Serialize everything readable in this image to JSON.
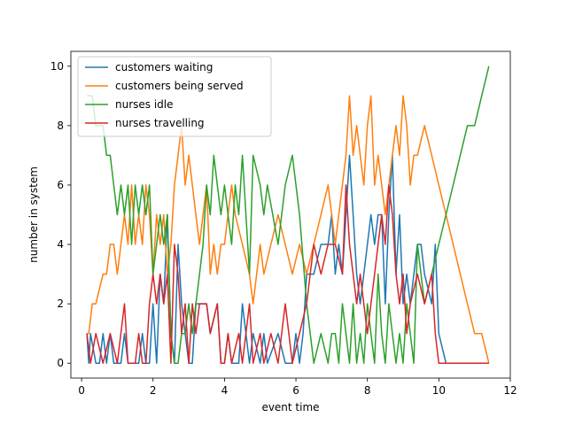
{
  "chart_data": {
    "type": "line",
    "title": "",
    "xlabel": "event time",
    "ylabel": "number in system",
    "xlim": [
      -0.3,
      12.0
    ],
    "ylim": [
      -0.5,
      10.5
    ],
    "xticks": [
      0,
      2,
      4,
      6,
      8,
      10,
      12
    ],
    "yticks": [
      0,
      2,
      4,
      6,
      8,
      10
    ],
    "legend_position": "top-left",
    "series": [
      {
        "name": "customers waiting",
        "color": "#1f77b4",
        "x": [
          0.15,
          0.2,
          0.25,
          0.4,
          0.5,
          0.6,
          0.7,
          0.8,
          0.9,
          1.0,
          1.1,
          1.2,
          1.3,
          1.5,
          1.6,
          1.7,
          1.8,
          1.9,
          2.0,
          2.1,
          2.2,
          2.3,
          2.4,
          2.5,
          2.6,
          2.7,
          2.8,
          2.9,
          3.0,
          3.1,
          3.2,
          3.3,
          3.5,
          3.6,
          3.8,
          3.9,
          4.0,
          4.1,
          4.2,
          4.4,
          4.5,
          4.7,
          4.8,
          5.0,
          5.1,
          5.2,
          5.5,
          5.7,
          5.9,
          6.0,
          6.1,
          6.2,
          6.3,
          6.5,
          6.7,
          6.9,
          7.0,
          7.1,
          7.2,
          7.3,
          7.4,
          7.5,
          7.6,
          7.7,
          7.8,
          8.0,
          8.1,
          8.2,
          8.3,
          8.4,
          8.5,
          8.6,
          8.7,
          8.8,
          8.9,
          9.0,
          9.1,
          9.2,
          9.4,
          9.5,
          9.6,
          9.8,
          9.9,
          10.0,
          10.2,
          10.4,
          11.0,
          11.4
        ],
        "y": [
          1,
          0,
          1,
          0,
          0,
          1,
          0,
          1,
          0,
          0,
          0,
          1,
          0,
          0,
          0,
          1,
          0,
          0,
          2,
          0,
          3,
          2,
          5,
          1,
          0,
          4,
          2,
          1,
          0,
          0,
          2,
          2,
          2,
          1,
          2,
          0,
          0,
          1,
          0,
          0,
          2,
          0,
          1,
          0,
          1,
          0,
          1,
          0,
          0,
          1,
          0,
          1,
          3,
          3,
          4,
          4,
          5,
          3,
          4,
          3,
          5,
          7,
          5,
          3,
          2,
          4,
          5,
          4,
          5,
          5,
          2,
          5,
          7,
          3,
          5,
          2,
          3,
          2,
          4,
          4,
          3,
          2,
          4,
          1,
          0,
          0,
          0,
          0
        ]
      },
      {
        "name": "customers being served",
        "color": "#ff7f0e",
        "x": [
          0.15,
          0.2,
          0.3,
          0.4,
          0.6,
          0.7,
          0.8,
          0.9,
          1.0,
          1.1,
          1.2,
          1.3,
          1.4,
          1.5,
          1.6,
          1.7,
          1.8,
          1.9,
          2.0,
          2.1,
          2.2,
          2.3,
          2.4,
          2.5,
          2.6,
          2.7,
          2.8,
          2.9,
          3.0,
          3.1,
          3.2,
          3.3,
          3.4,
          3.5,
          3.6,
          3.7,
          3.8,
          3.9,
          4.0,
          4.1,
          4.2,
          4.3,
          4.5,
          4.7,
          4.8,
          5.0,
          5.1,
          5.3,
          5.5,
          5.7,
          5.9,
          6.1,
          6.3,
          6.5,
          6.7,
          6.9,
          7.0,
          7.1,
          7.2,
          7.3,
          7.4,
          7.5,
          7.6,
          7.7,
          7.8,
          7.9,
          8.0,
          8.1,
          8.2,
          8.3,
          8.4,
          8.5,
          8.6,
          8.7,
          8.8,
          8.9,
          9.0,
          9.1,
          9.2,
          9.3,
          9.4,
          9.6,
          9.8,
          10.0,
          10.2,
          10.4,
          10.6,
          10.8,
          11.0,
          11.2,
          11.4
        ],
        "y": [
          1,
          1,
          2,
          2,
          3,
          3,
          4,
          4,
          3,
          4,
          5,
          4,
          6,
          4,
          5,
          4,
          6,
          5,
          3,
          5,
          4,
          5,
          3,
          4,
          6,
          7,
          8,
          6,
          7,
          6,
          5,
          4,
          5,
          6,
          3,
          4,
          3,
          4,
          4,
          5,
          6,
          5,
          4,
          3,
          2,
          4,
          3,
          4,
          5,
          4,
          3,
          4,
          3,
          4,
          5,
          6,
          5,
          4,
          5,
          6,
          7,
          9,
          7,
          8,
          7,
          6,
          8,
          9,
          6,
          7,
          6,
          5,
          6,
          7,
          8,
          7,
          9,
          8,
          6,
          7,
          7,
          8,
          7,
          6,
          5,
          4,
          3,
          2,
          1,
          1,
          0
        ]
      },
      {
        "name": "nurses idle",
        "color": "#2ca02c",
        "x": [
          0.15,
          0.3,
          0.4,
          0.5,
          0.6,
          0.7,
          0.8,
          0.9,
          1.0,
          1.1,
          1.2,
          1.3,
          1.4,
          1.5,
          1.6,
          1.7,
          1.8,
          1.9,
          2.0,
          2.1,
          2.2,
          2.3,
          2.4,
          2.5,
          2.6,
          2.7,
          2.8,
          2.9,
          3.0,
          3.1,
          3.2,
          3.3,
          3.4,
          3.5,
          3.6,
          3.7,
          3.8,
          3.9,
          4.0,
          4.1,
          4.2,
          4.3,
          4.4,
          4.5,
          4.7,
          4.8,
          5.0,
          5.1,
          5.2,
          5.5,
          5.7,
          5.9,
          6.1,
          6.3,
          6.5,
          6.7,
          6.9,
          7.0,
          7.1,
          7.2,
          7.3,
          7.4,
          7.5,
          7.6,
          7.7,
          7.8,
          7.9,
          8.0,
          8.1,
          8.2,
          8.3,
          8.4,
          8.5,
          8.6,
          8.7,
          8.8,
          8.9,
          9.0,
          9.1,
          9.2,
          9.3,
          9.4,
          9.6,
          9.8,
          10.0,
          10.2,
          10.4,
          10.6,
          10.8,
          11.0,
          11.2,
          11.4
        ],
        "y": [
          9,
          9,
          8,
          8,
          8,
          7,
          7,
          6,
          5,
          6,
          5,
          6,
          4,
          6,
          5,
          6,
          5,
          6,
          3,
          4,
          5,
          4,
          5,
          1,
          0,
          0,
          1,
          1,
          2,
          1,
          2,
          3,
          4,
          6,
          5,
          7,
          6,
          5,
          6,
          5,
          4,
          6,
          5,
          7,
          3,
          7,
          6,
          5,
          6,
          4,
          6,
          7,
          5,
          2,
          0,
          1,
          0,
          1,
          1,
          0,
          2,
          1,
          0,
          2,
          0,
          1,
          0,
          2,
          1,
          0,
          3,
          1,
          0,
          2,
          1,
          0,
          1,
          0,
          2,
          1,
          0,
          4,
          2,
          3,
          4,
          5,
          6,
          7,
          8,
          8,
          9,
          10
        ]
      },
      {
        "name": "nurses travelling",
        "color": "#d62728",
        "x": [
          0.15,
          0.25,
          0.4,
          0.6,
          0.8,
          1.0,
          1.2,
          1.3,
          1.5,
          1.6,
          1.7,
          1.8,
          1.9,
          2.0,
          2.1,
          2.2,
          2.3,
          2.4,
          2.5,
          2.6,
          2.7,
          2.8,
          2.9,
          3.0,
          3.1,
          3.2,
          3.3,
          3.5,
          3.6,
          3.8,
          3.9,
          4.0,
          4.1,
          4.2,
          4.4,
          4.5,
          4.7,
          4.8,
          5.0,
          5.1,
          5.3,
          5.5,
          5.7,
          5.9,
          6.1,
          6.3,
          6.5,
          6.7,
          6.9,
          7.1,
          7.3,
          7.4,
          7.5,
          7.6,
          7.7,
          7.8,
          8.0,
          8.1,
          8.2,
          8.3,
          8.4,
          8.5,
          8.6,
          8.7,
          8.8,
          8.9,
          9.0,
          9.1,
          9.2,
          9.4,
          9.6,
          9.8,
          9.9,
          10.0,
          10.2,
          10.4,
          11.0,
          11.4
        ],
        "y": [
          1,
          0,
          1,
          0,
          1,
          0,
          2,
          0,
          0,
          1,
          0,
          0,
          2,
          3,
          2,
          3,
          2,
          3,
          0,
          4,
          3,
          1,
          2,
          0,
          2,
          1,
          2,
          2,
          1,
          2,
          0,
          0,
          1,
          0,
          1,
          0,
          2,
          0,
          1,
          0,
          1,
          0,
          2,
          0,
          1,
          2,
          4,
          3,
          4,
          4,
          3,
          6,
          4,
          3,
          2,
          3,
          1,
          2,
          3,
          4,
          5,
          4,
          6,
          5,
          3,
          2,
          3,
          1,
          2,
          3,
          2,
          3,
          1,
          0,
          0,
          0,
          0,
          0
        ]
      }
    ]
  }
}
